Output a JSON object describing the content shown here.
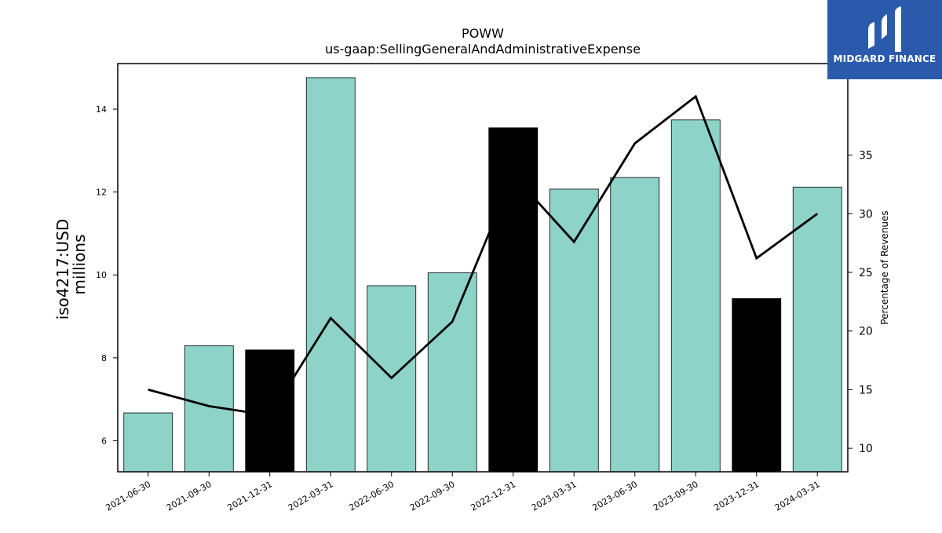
{
  "chart_data": {
    "type": "bar",
    "title": "POWW",
    "subtitle": "us-gaap:SellingGeneralAndAdministrativeExpense",
    "ylabel_left_line1": "iso4217:USD",
    "ylabel_left_line2": "millions",
    "ylabel_right": "Percentage of Revenues",
    "categories": [
      "2021-06-30",
      "2021-09-30",
      "2021-12-31",
      "2022-03-31",
      "2022-06-30",
      "2022-09-30",
      "2022-12-31",
      "2023-03-31",
      "2023-06-30",
      "2023-09-30",
      "2023-12-31",
      "2024-03-31"
    ],
    "bar_values": [
      6.67,
      8.29,
      8.19,
      14.76,
      9.74,
      10.05,
      13.55,
      12.07,
      12.35,
      13.74,
      9.43,
      12.12
    ],
    "bar_colors": [
      "#8dd3c7",
      "#8dd3c7",
      "#000000",
      "#8dd3c7",
      "#8dd3c7",
      "#8dd3c7",
      "#000000",
      "#8dd3c7",
      "#8dd3c7",
      "#8dd3c7",
      "#000000",
      "#8dd3c7"
    ],
    "line_values": [
      15.0,
      13.6,
      12.8,
      21.1,
      16.0,
      20.8,
      33.3,
      27.6,
      36.0,
      40.0,
      26.2,
      30.0
    ],
    "ylim_left": [
      5.25,
      15.1
    ],
    "yticks_left": [
      6,
      8,
      10,
      12,
      14
    ],
    "ylim_right": [
      8.0,
      42.8
    ],
    "yticks_right": [
      10,
      15,
      20,
      25,
      30,
      35
    ],
    "grid": false
  },
  "logo": {
    "brand_text": "MIDGARD FINANCE",
    "bg_color": "#2b5aad"
  }
}
